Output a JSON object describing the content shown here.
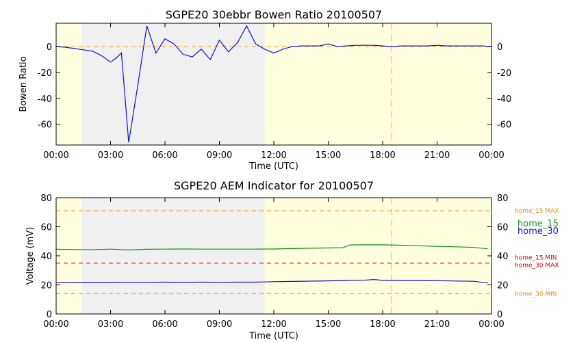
{
  "chart_data": [
    {
      "type": "line",
      "title": "SGPE20 30ebbr Bowen Ratio 20100507",
      "xlabel": "Time (UTC)",
      "ylabel": "Bowen Ratio",
      "xlim": [
        0,
        24
      ],
      "ylim": [
        -76,
        18
      ],
      "x_tick_labels": [
        "00:00",
        "03:00",
        "06:00",
        "09:00",
        "12:00",
        "15:00",
        "18:00",
        "21:00",
        "00:00"
      ],
      "x_ticks": [
        0,
        3,
        6,
        9,
        12,
        15,
        18,
        21,
        24
      ],
      "y_ticks": [
        0,
        -20,
        -40,
        -60
      ],
      "night_shading": {
        "start": 1.4,
        "end": 11.5
      },
      "vertical_marker": 18.5,
      "reference_lines": [
        {
          "value": 0,
          "color": "#f0a020"
        }
      ],
      "series": [
        {
          "color": "#1010d0",
          "x": [
            0,
            0.5,
            1.0,
            1.5,
            2.0,
            2.5,
            3.0,
            3.3,
            3.6,
            4.0,
            4.5,
            5.0,
            5.5,
            6.0,
            6.5,
            7.0,
            7.5,
            8.0,
            8.5,
            9.0,
            9.5,
            10.0,
            10.5,
            11.0,
            11.5,
            12.0,
            12.5,
            13.0,
            13.5,
            14.0,
            14.5,
            15.0,
            15.5,
            16.0,
            16.5,
            17.0,
            17.5,
            18.0,
            18.5,
            19.0,
            19.5,
            20.0,
            20.5,
            21.0,
            21.5,
            22.0,
            22.5,
            23.0,
            23.5,
            24.0
          ],
          "y": [
            0,
            -0.5,
            -1.5,
            -2.5,
            -3.5,
            -7,
            -12,
            -9,
            -5,
            -74,
            -30,
            16,
            -5,
            6,
            2,
            -6,
            -8,
            -2,
            -10,
            5,
            -4,
            3,
            16,
            2,
            -2,
            -5,
            -2,
            0,
            0.5,
            0.5,
            0.5,
            2,
            0,
            0.5,
            1,
            1,
            1,
            0.5,
            0,
            0.5,
            0.5,
            0.5,
            0.5,
            1,
            0.5,
            0.5,
            0.5,
            0.5,
            0.5,
            0
          ]
        }
      ]
    },
    {
      "type": "line",
      "title": "SGPE20 AEM Indicator for 20100507",
      "xlabel": "Time (UTC)",
      "ylabel": "Voltage (mV)",
      "xlim": [
        0,
        24
      ],
      "ylim": [
        0,
        80
      ],
      "x_tick_labels": [
        "00:00",
        "03:00",
        "06:00",
        "09:00",
        "12:00",
        "15:00",
        "18:00",
        "21:00",
        "00:00"
      ],
      "x_ticks": [
        0,
        3,
        6,
        9,
        12,
        15,
        18,
        21,
        24
      ],
      "y_ticks": [
        0,
        20,
        40,
        60,
        80
      ],
      "night_shading": {
        "start": 1.4,
        "end": 11.5
      },
      "vertical_marker": 18.5,
      "reference_lines": [
        {
          "label": "home_15 MAX",
          "value": 71,
          "color": "#f0a020",
          "label_color": "#d89000"
        },
        {
          "label": "home_15 MIN",
          "value": 35,
          "color": "#e01010",
          "label_color": "#c00000"
        },
        {
          "label": "home_30 MAX",
          "value": 35,
          "color": "#e01010",
          "label_color": "#c00000"
        },
        {
          "label": "home_30 MIN",
          "value": 14,
          "color": "#f0a020",
          "label_color": "#d89000"
        }
      ],
      "series": [
        {
          "name": "home_15",
          "color": "#109010",
          "x": [
            0,
            1,
            2,
            3,
            4,
            5,
            6,
            7,
            8,
            9,
            10,
            11,
            12,
            13,
            14,
            15,
            15.8,
            16.2,
            17,
            18,
            19,
            20,
            21,
            22,
            23,
            23.8
          ],
          "y": [
            44.5,
            44.3,
            44.2,
            44.6,
            44,
            44.5,
            44.6,
            44.7,
            44.6,
            44.6,
            44.6,
            44.6,
            44.7,
            45,
            45.2,
            45.4,
            45.6,
            47.5,
            47.6,
            47.6,
            47.3,
            46.9,
            46.5,
            46.2,
            45.8,
            44.8
          ]
        },
        {
          "name": "home_30",
          "color": "#1010c0",
          "x": [
            0,
            1,
            2,
            3,
            4,
            5,
            6,
            7,
            8,
            9,
            10,
            11,
            12,
            13,
            14,
            15,
            16,
            17,
            17.5,
            18,
            19,
            20,
            21,
            22,
            23,
            23.8
          ],
          "y": [
            21.5,
            21.6,
            21.6,
            21.7,
            21.8,
            21.8,
            21.9,
            21.8,
            21.9,
            21.8,
            21.9,
            21.9,
            22.2,
            22.4,
            22.6,
            22.8,
            23,
            23.2,
            23.7,
            23.1,
            23,
            23,
            22.9,
            22.7,
            22.5,
            21.3
          ]
        }
      ]
    }
  ]
}
